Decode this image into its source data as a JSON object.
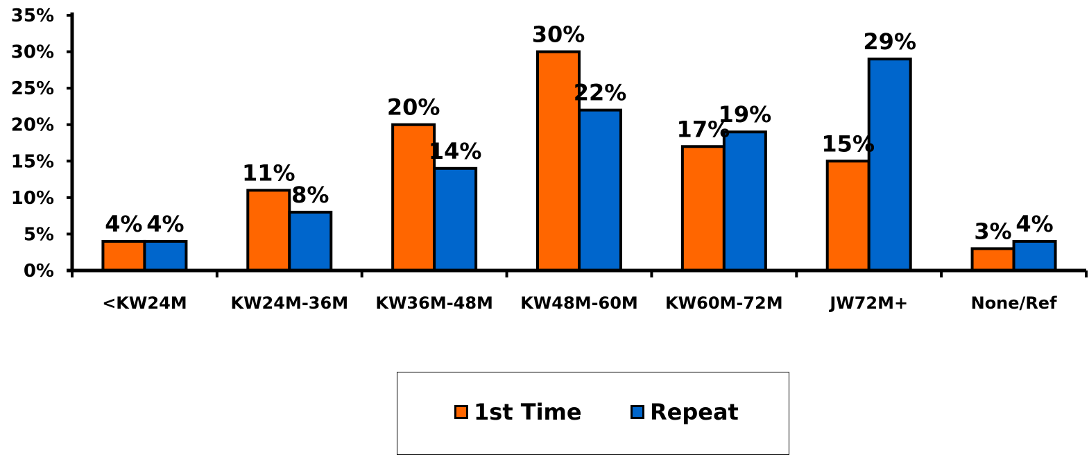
{
  "chart_data": {
    "type": "bar",
    "categories": [
      "<KW24M",
      "KW24M-36M",
      "KW36M-48M",
      "KW48M-60M",
      "KW60M-72M",
      "JW72M+",
      "None/Ref"
    ],
    "series": [
      {
        "name": "1st Time",
        "color": "#FF6600",
        "values": [
          4,
          11,
          20,
          30,
          17,
          15,
          3
        ]
      },
      {
        "name": "Repeat",
        "color": "#0066CC",
        "values": [
          4,
          8,
          14,
          22,
          19,
          29,
          4
        ]
      }
    ],
    "data_labels": {
      "1st Time": [
        "4%",
        "11%",
        "20%",
        "30%",
        "17%",
        "15%",
        "3%"
      ],
      "Repeat": [
        "4%",
        "8%",
        "14%",
        "22%",
        "19%",
        "29%",
        "4%"
      ]
    },
    "y_ticks": [
      "0%",
      "5%",
      "10%",
      "15%",
      "20%",
      "25%",
      "30%",
      "35%"
    ],
    "ylim": [
      0,
      35
    ],
    "grid": false,
    "legend_position": "bottom"
  }
}
